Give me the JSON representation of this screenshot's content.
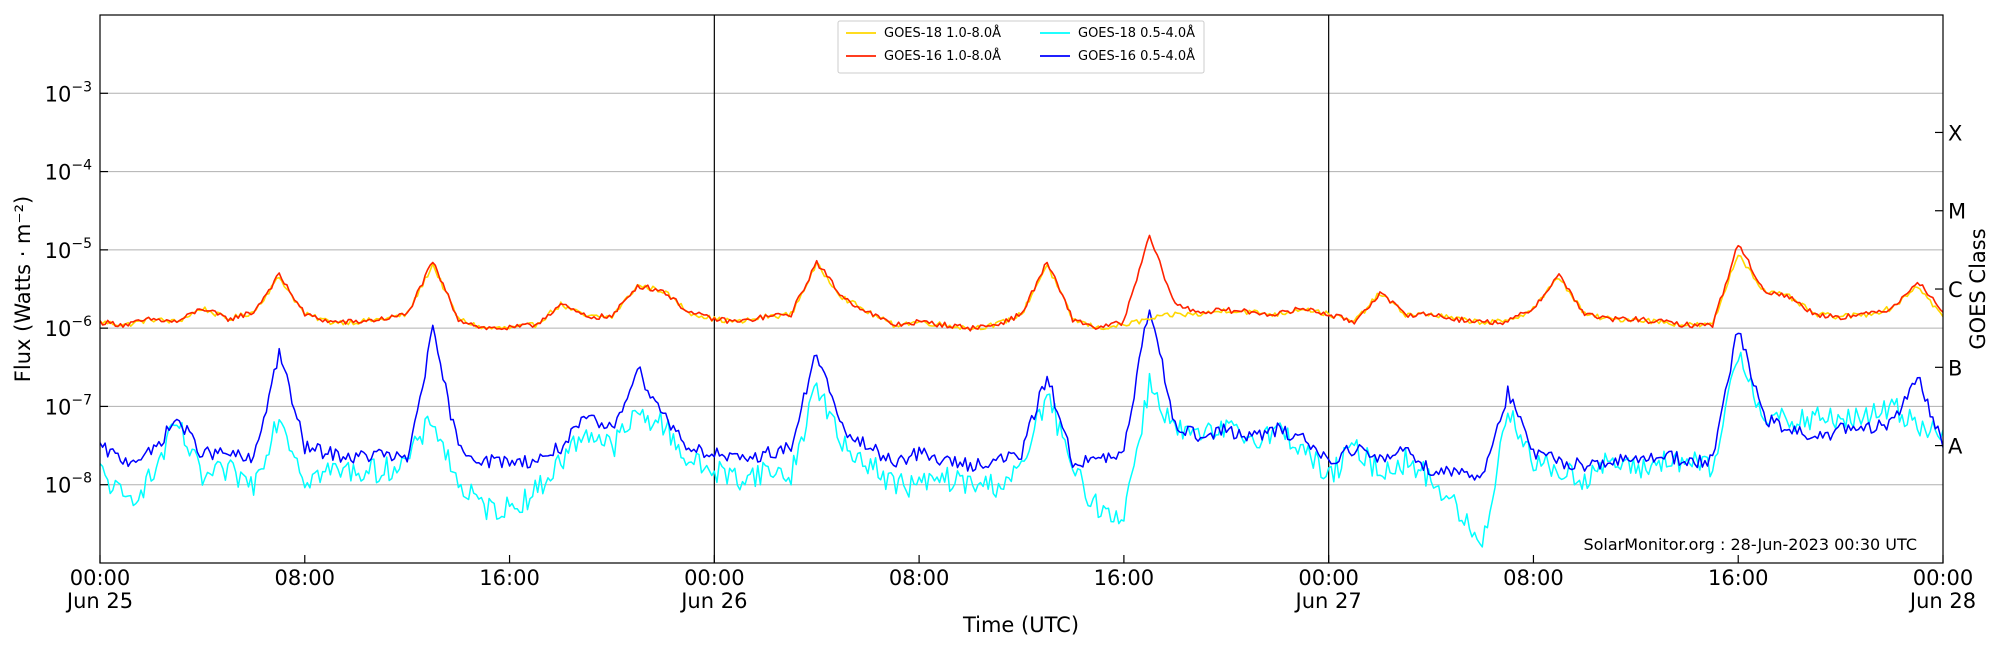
{
  "chart_data": {
    "type": "line",
    "xlabel": "Time (UTC)",
    "ylabel": "Flux (Watts · m⁻²)",
    "y2label": "GOES Class",
    "credit": "SolarMonitor.org : 28-Jun-2023 00:30 UTC",
    "yscale": "log",
    "ylim": [
      1e-09,
      0.01
    ],
    "xlim_hours": [
      0,
      72
    ],
    "grid": "horizontal",
    "legend_position": "top-center",
    "y_ticks": [
      {
        "base": "10",
        "exp": "−8",
        "value": 1e-08
      },
      {
        "base": "10",
        "exp": "−7",
        "value": 1e-07
      },
      {
        "base": "10",
        "exp": "−6",
        "value": 1e-06
      },
      {
        "base": "10",
        "exp": "−5",
        "value": 1e-05
      },
      {
        "base": "10",
        "exp": "−4",
        "value": 0.0001
      },
      {
        "base": "10",
        "exp": "−3",
        "value": 0.001
      }
    ],
    "class_ticks": [
      {
        "label": "A",
        "value": 3.16e-08
      },
      {
        "label": "B",
        "value": 3.16e-07
      },
      {
        "label": "C",
        "value": 3.16e-06
      },
      {
        "label": "M",
        "value": 3.16e-05
      },
      {
        "label": "X",
        "value": 0.000316
      }
    ],
    "x_ticks": [
      {
        "hour": 0,
        "time": "00:00",
        "date": "Jun 25"
      },
      {
        "hour": 8,
        "time": "08:00",
        "date": ""
      },
      {
        "hour": 16,
        "time": "16:00",
        "date": ""
      },
      {
        "hour": 24,
        "time": "00:00",
        "date": "Jun 26"
      },
      {
        "hour": 32,
        "time": "08:00",
        "date": ""
      },
      {
        "hour": 40,
        "time": "16:00",
        "date": ""
      },
      {
        "hour": 48,
        "time": "00:00",
        "date": "Jun 27"
      },
      {
        "hour": 56,
        "time": "08:00",
        "date": ""
      },
      {
        "hour": 64,
        "time": "16:00",
        "date": ""
      },
      {
        "hour": 72,
        "time": "00:00",
        "date": "Jun 28"
      }
    ],
    "day_boundaries_hours": [
      24,
      48
    ],
    "series": [
      {
        "name": "GOES-18 1.0-8.0Å",
        "color": "#ffd700",
        "x": [
          0,
          1,
          2,
          3,
          4,
          5,
          6,
          7,
          8,
          9,
          10,
          11,
          12,
          13,
          14,
          15,
          16,
          17,
          18,
          19,
          20,
          21,
          22,
          23,
          24,
          25,
          26,
          27,
          28,
          29,
          30,
          31,
          32,
          33,
          34,
          35,
          36,
          37,
          38,
          39,
          40,
          41,
          42,
          43,
          44,
          45,
          46,
          47,
          48,
          49,
          50,
          51,
          52,
          53,
          54,
          55,
          56,
          57,
          58,
          59,
          60,
          61,
          62,
          63,
          64,
          65,
          66,
          67,
          68,
          69,
          70,
          71,
          72
        ],
        "y": [
          1.2e-06,
          1.1e-06,
          1.3e-06,
          1.2e-06,
          1.8e-06,
          1.3e-06,
          1.6e-06,
          4.5e-06,
          1.5e-06,
          1.2e-06,
          1.2e-06,
          1.3e-06,
          1.5e-06,
          6.5e-06,
          1.3e-06,
          1e-06,
          1e-06,
          1.1e-06,
          2e-06,
          1.4e-06,
          1.4e-06,
          3.5e-06,
          3e-06,
          1.6e-06,
          1.3e-06,
          1.2e-06,
          1.4e-06,
          1.5e-06,
          6.5e-06,
          2.5e-06,
          1.6e-06,
          1.1e-06,
          1.2e-06,
          1.1e-06,
          1e-06,
          1.1e-06,
          1.5e-06,
          6.5e-06,
          1.3e-06,
          1e-06,
          1.1e-06,
          1.3e-06,
          1.5e-06,
          1.5e-06,
          1.7e-06,
          1.6e-06,
          1.5e-06,
          1.8e-06,
          1.5e-06,
          1.2e-06,
          2.8e-06,
          1.5e-06,
          1.5e-06,
          1.3e-06,
          1.2e-06,
          1.2e-06,
          1.8e-06,
          4.5e-06,
          1.5e-06,
          1.3e-06,
          1.3e-06,
          1.2e-06,
          1.1e-06,
          1.1e-06,
          9e-06,
          3e-06,
          2.5e-06,
          1.5e-06,
          1.4e-06,
          1.5e-06,
          1.8e-06,
          3.5e-06,
          1.4e-06
        ]
      },
      {
        "name": "GOES-16 1.0-8.0Å",
        "color": "#ff2200",
        "x": [
          0,
          1,
          2,
          3,
          4,
          5,
          6,
          7,
          8,
          9,
          10,
          11,
          12,
          13,
          14,
          15,
          16,
          17,
          18,
          19,
          20,
          21,
          22,
          23,
          24,
          25,
          26,
          27,
          28,
          29,
          30,
          31,
          32,
          33,
          34,
          35,
          36,
          37,
          38,
          39,
          40,
          41,
          42,
          43,
          44,
          45,
          46,
          47,
          48,
          49,
          50,
          51,
          52,
          53,
          54,
          55,
          56,
          57,
          58,
          59,
          60,
          61,
          62,
          63,
          64,
          65,
          66,
          67,
          68,
          69,
          70,
          71,
          72
        ],
        "y": [
          1.2e-06,
          1.1e-06,
          1.3e-06,
          1.2e-06,
          1.8e-06,
          1.3e-06,
          1.6e-06,
          4.8e-06,
          1.5e-06,
          1.2e-06,
          1.2e-06,
          1.3e-06,
          1.5e-06,
          7e-06,
          1.3e-06,
          1e-06,
          1e-06,
          1.1e-06,
          2e-06,
          1.4e-06,
          1.4e-06,
          3.5e-06,
          3e-06,
          1.6e-06,
          1.3e-06,
          1.2e-06,
          1.4e-06,
          1.5e-06,
          7e-06,
          2.5e-06,
          1.6e-06,
          1.1e-06,
          1.2e-06,
          1.1e-06,
          1e-06,
          1.1e-06,
          1.5e-06,
          7e-06,
          1.3e-06,
          1e-06,
          1.2e-06,
          1.5e-05,
          2e-06,
          1.6e-06,
          1.7e-06,
          1.6e-06,
          1.5e-06,
          1.8e-06,
          1.5e-06,
          1.2e-06,
          2.8e-06,
          1.5e-06,
          1.5e-06,
          1.3e-06,
          1.2e-06,
          1.2e-06,
          1.8e-06,
          4.8e-06,
          1.5e-06,
          1.3e-06,
          1.3e-06,
          1.2e-06,
          1.1e-06,
          1.1e-06,
          1.2e-05,
          3e-06,
          2.5e-06,
          1.5e-06,
          1.4e-06,
          1.5e-06,
          1.8e-06,
          4e-06,
          1.6e-06
        ]
      },
      {
        "name": "GOES-18 0.5-4.0Å",
        "color": "#00ffff",
        "x": [
          0,
          1,
          2,
          3,
          4,
          5,
          6,
          7,
          8,
          9,
          10,
          11,
          12,
          13,
          14,
          15,
          16,
          17,
          18,
          19,
          20,
          21,
          22,
          23,
          24,
          25,
          26,
          27,
          28,
          29,
          30,
          31,
          32,
          33,
          34,
          35,
          36,
          37,
          38,
          39,
          40,
          41,
          42,
          43,
          44,
          45,
          46,
          47,
          48,
          49,
          50,
          51,
          52,
          53,
          54,
          55,
          56,
          57,
          58,
          59,
          60,
          61,
          62,
          63,
          64,
          65,
          66,
          67,
          68,
          69,
          70,
          71,
          72
        ],
        "y": [
          1.5e-08,
          6e-09,
          1.2e-08,
          6e-08,
          1.2e-08,
          1.5e-08,
          1e-08,
          8e-08,
          1.2e-08,
          1.5e-08,
          1.5e-08,
          1.5e-08,
          2e-08,
          7e-08,
          1e-08,
          5e-09,
          5e-09,
          8e-09,
          2e-08,
          5e-08,
          3e-08,
          8e-08,
          6e-08,
          2e-08,
          1.5e-08,
          1.2e-08,
          1.5e-08,
          1.3e-08,
          2e-07,
          3e-08,
          2e-08,
          1e-08,
          1e-08,
          1.2e-08,
          1e-08,
          1e-08,
          1.5e-08,
          1.5e-07,
          1.5e-08,
          5e-09,
          4e-09,
          2e-07,
          5e-08,
          4e-08,
          5e-08,
          4e-08,
          5e-08,
          3e-08,
          1.2e-08,
          3e-08,
          1.5e-08,
          2e-08,
          1.2e-08,
          5e-09,
          1.5e-09,
          1e-07,
          2e-08,
          1.5e-08,
          1.2e-08,
          2e-08,
          1.5e-08,
          2e-08,
          2e-08,
          1.5e-08,
          5e-07,
          8e-08,
          6e-08,
          7e-08,
          7e-08,
          7e-08,
          1e-07,
          6e-08,
          5e-08
        ]
      },
      {
        "name": "GOES-16 0.5-4.0Å",
        "color": "#0000ff",
        "x": [
          0,
          1,
          2,
          3,
          4,
          5,
          6,
          7,
          8,
          9,
          10,
          11,
          12,
          13,
          14,
          15,
          16,
          17,
          18,
          19,
          20,
          21,
          22,
          23,
          24,
          25,
          26,
          27,
          28,
          29,
          30,
          31,
          32,
          33,
          34,
          35,
          36,
          37,
          38,
          39,
          40,
          41,
          42,
          43,
          44,
          45,
          46,
          47,
          48,
          49,
          50,
          51,
          52,
          53,
          54,
          55,
          56,
          57,
          58,
          59,
          60,
          61,
          62,
          63,
          64,
          65,
          66,
          67,
          68,
          69,
          70,
          71,
          72
        ],
        "y": [
          3e-08,
          2e-08,
          2.5e-08,
          7e-08,
          2.5e-08,
          2.5e-08,
          2e-08,
          5e-07,
          3e-08,
          2.5e-08,
          2.2e-08,
          2.5e-08,
          2e-08,
          9e-07,
          3e-08,
          2e-08,
          2e-08,
          2e-08,
          3e-08,
          7e-08,
          5e-08,
          3e-07,
          8e-08,
          3e-08,
          2.5e-08,
          2e-08,
          2.5e-08,
          3e-08,
          5e-07,
          5e-08,
          3e-08,
          2e-08,
          2.5e-08,
          2e-08,
          1.8e-08,
          2e-08,
          2.5e-08,
          2.5e-07,
          2e-08,
          2e-08,
          2.5e-08,
          2e-06,
          6e-08,
          4e-08,
          5e-08,
          4e-08,
          5e-08,
          4e-08,
          2e-08,
          3e-08,
          2e-08,
          3e-08,
          1.5e-08,
          1.5e-08,
          1.3e-08,
          1.5e-07,
          2.5e-08,
          2e-08,
          1.8e-08,
          2e-08,
          2e-08,
          2.5e-08,
          2e-08,
          2e-08,
          1e-06,
          7e-08,
          5e-08,
          4e-08,
          5e-08,
          5e-08,
          6e-08,
          2.5e-07,
          3e-08
        ]
      }
    ]
  }
}
